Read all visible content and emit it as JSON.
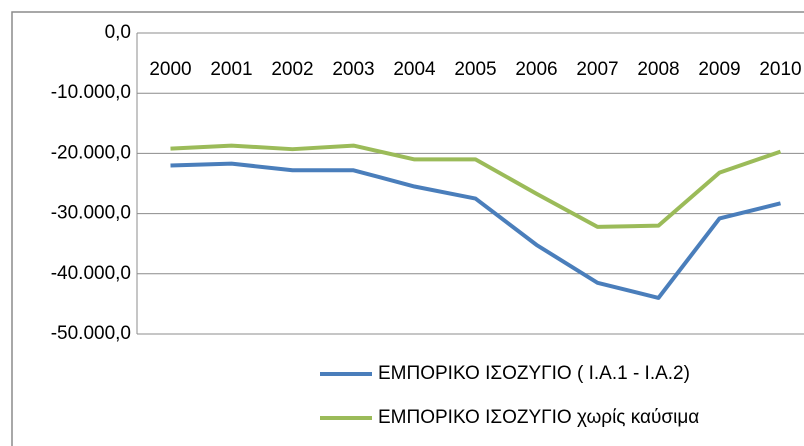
{
  "chart_data": {
    "type": "line",
    "categories": [
      "2000",
      "2001",
      "2002",
      "2003",
      "2004",
      "2005",
      "2006",
      "2007",
      "2008",
      "2009",
      "2010"
    ],
    "series": [
      {
        "name": "ΕΜΠΟΡΙΚΟ ΙΣΟΖΥΓΙΟ ( Ι.Α.1 -  Ι.Α.2)",
        "color": "#4a7ebb",
        "values": [
          -22000,
          -21700,
          -22800,
          -22800,
          -25500,
          -27500,
          -35200,
          -41500,
          -44000,
          -30800,
          -28300
        ]
      },
      {
        "name": "ΕΜΠΟΡΙΚΟ ΙΣΟΖΥΓΙΟ χωρίς καύσιμα",
        "color": "#9bbb59",
        "values": [
          -19200,
          -18700,
          -19300,
          -18700,
          -21000,
          -21000,
          -26700,
          -32200,
          -32000,
          -23200,
          -19700
        ]
      }
    ],
    "ylim": [
      -50000,
      0
    ],
    "yticks": [
      {
        "value": 0,
        "label": "0,0"
      },
      {
        "value": -10000,
        "label": "-10.000,0"
      },
      {
        "value": -20000,
        "label": "-20.000,0"
      },
      {
        "value": -30000,
        "label": "-30.000,0"
      },
      {
        "value": -40000,
        "label": "-40.000,0"
      },
      {
        "value": -50000,
        "label": "-50.000,0"
      }
    ],
    "grid": true,
    "legend": "bottom"
  }
}
